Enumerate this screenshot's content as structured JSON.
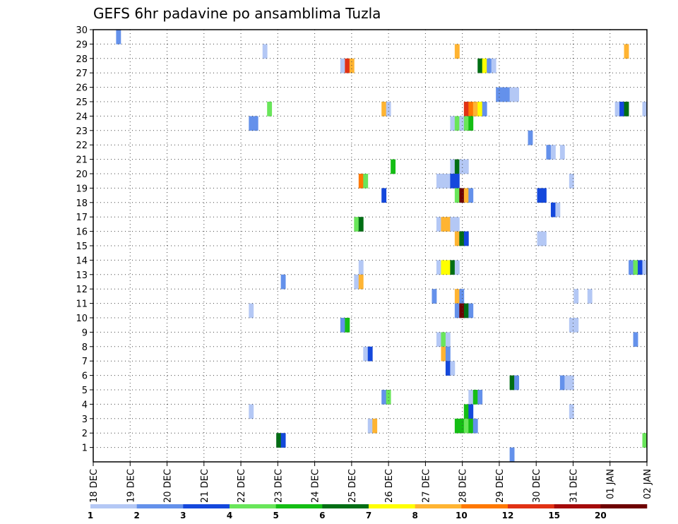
{
  "chart_data": {
    "type": "heatmap",
    "title": "GEFS 6hr padavine po ansamblima Tuzla",
    "xlabel": "",
    "ylabel": "",
    "x_ticks": [
      "18 DEC",
      "19 DEC",
      "20 DEC",
      "21 DEC",
      "22 DEC",
      "23 DEC",
      "24 DEC",
      "25 DEC",
      "26 DEC",
      "27 DEC",
      "28 DEC",
      "29 DEC",
      "30 DEC",
      "31 DEC",
      "01 JAN",
      "02 JAN"
    ],
    "y_ticks": [
      "1",
      "2",
      "3",
      "4",
      "5",
      "6",
      "7",
      "8",
      "9",
      "10",
      "11",
      "12",
      "13",
      "14",
      "15",
      "16",
      "17",
      "18",
      "19",
      "20",
      "21",
      "22",
      "23",
      "24",
      "25",
      "26",
      "27",
      "28",
      "29",
      "30"
    ],
    "ylim": [
      0,
      30
    ],
    "grid": true,
    "colorbar": {
      "labels": [
        "1",
        "2",
        "3",
        "4",
        "5",
        "6",
        "7",
        "8",
        "10",
        "12",
        "15",
        "20"
      ],
      "colors": [
        "#b4c8f5",
        "#6491eb",
        "#1448dc",
        "#69e65a",
        "#14be14",
        "#006e14",
        "#ffff00",
        "#ffb432",
        "#ff7800",
        "#e13214",
        "#a50a0a",
        "#6e0000"
      ]
    },
    "cells": [
      [
        5,
        30,
        "#6491eb"
      ],
      [
        37,
        29,
        "#b4c8f5"
      ],
      [
        79,
        29,
        "#ffb432"
      ],
      [
        116,
        29,
        "#ffb432"
      ],
      [
        54,
        28,
        "#b4c8f5"
      ],
      [
        55,
        28,
        "#e13214"
      ],
      [
        56,
        28,
        "#ffb432"
      ],
      [
        84,
        28,
        "#006e14"
      ],
      [
        85,
        28,
        "#ffff00"
      ],
      [
        86,
        28,
        "#6491eb"
      ],
      [
        87,
        28,
        "#b4c8f5"
      ],
      [
        88,
        26,
        "#6491eb"
      ],
      [
        89,
        26,
        "#6491eb"
      ],
      [
        90,
        26,
        "#6491eb"
      ],
      [
        91,
        26,
        "#b4c8f5"
      ],
      [
        92,
        26,
        "#b4c8f5"
      ],
      [
        38,
        25,
        "#69e65a"
      ],
      [
        63,
        25,
        "#ffb432"
      ],
      [
        64,
        25,
        "#b4c8f5"
      ],
      [
        81,
        25,
        "#e13214"
      ],
      [
        82,
        25,
        "#ff7800"
      ],
      [
        83,
        25,
        "#ffb432"
      ],
      [
        84,
        25,
        "#ffff00"
      ],
      [
        85,
        25,
        "#6491eb"
      ],
      [
        114,
        25,
        "#b4c8f5"
      ],
      [
        115,
        25,
        "#1448dc"
      ],
      [
        116,
        25,
        "#006e14"
      ],
      [
        120,
        25,
        "#b4c8f5"
      ],
      [
        34,
        24,
        "#6491eb"
      ],
      [
        35,
        24,
        "#6491eb"
      ],
      [
        78,
        24,
        "#b4c8f5"
      ],
      [
        79,
        24,
        "#69e65a"
      ],
      [
        80,
        24,
        "#b4c8f5"
      ],
      [
        81,
        24,
        "#69e65a"
      ],
      [
        82,
        24,
        "#14be14"
      ],
      [
        95,
        23,
        "#6491eb"
      ],
      [
        99,
        22,
        "#6491eb"
      ],
      [
        100,
        22,
        "#b4c8f5"
      ],
      [
        102,
        22,
        "#b4c8f5"
      ],
      [
        65,
        21,
        "#14be14"
      ],
      [
        78,
        21,
        "#b4c8f5"
      ],
      [
        79,
        21,
        "#006e14"
      ],
      [
        80,
        21,
        "#b4c8f5"
      ],
      [
        81,
        21,
        "#b4c8f5"
      ],
      [
        58,
        20,
        "#ff7800"
      ],
      [
        59,
        20,
        "#69e65a"
      ],
      [
        75,
        20,
        "#b4c8f5"
      ],
      [
        76,
        20,
        "#b4c8f5"
      ],
      [
        77,
        20,
        "#b4c8f5"
      ],
      [
        78,
        20,
        "#1448dc"
      ],
      [
        79,
        20,
        "#1448dc"
      ],
      [
        104,
        20,
        "#b4c8f5"
      ],
      [
        63,
        19,
        "#1448dc"
      ],
      [
        79,
        19,
        "#69e65a"
      ],
      [
        80,
        19,
        "#6e0000"
      ],
      [
        81,
        19,
        "#ffb432"
      ],
      [
        82,
        19,
        "#6491eb"
      ],
      [
        97,
        19,
        "#1448dc"
      ],
      [
        98,
        19,
        "#1448dc"
      ],
      [
        100,
        18,
        "#1448dc"
      ],
      [
        101,
        18,
        "#b4c8f5"
      ],
      [
        57,
        17,
        "#69e65a"
      ],
      [
        58,
        17,
        "#006e14"
      ],
      [
        75,
        17,
        "#b4c8f5"
      ],
      [
        76,
        17,
        "#ffb432"
      ],
      [
        77,
        17,
        "#ffb432"
      ],
      [
        78,
        17,
        "#b4c8f5"
      ],
      [
        79,
        17,
        "#b4c8f5"
      ],
      [
        79,
        16,
        "#ffb432"
      ],
      [
        80,
        16,
        "#006e14"
      ],
      [
        81,
        16,
        "#1448dc"
      ],
      [
        97,
        16,
        "#b4c8f5"
      ],
      [
        98,
        16,
        "#b4c8f5"
      ],
      [
        58,
        14,
        "#b4c8f5"
      ],
      [
        75,
        14,
        "#b4c8f5"
      ],
      [
        76,
        14,
        "#ffff00"
      ],
      [
        77,
        14,
        "#ffff00"
      ],
      [
        78,
        14,
        "#006e14"
      ],
      [
        79,
        14,
        "#b4c8f5"
      ],
      [
        117,
        14,
        "#6491eb"
      ],
      [
        118,
        14,
        "#69e65a"
      ],
      [
        119,
        14,
        "#1448dc"
      ],
      [
        120,
        14,
        "#b4c8f5"
      ],
      [
        41,
        13,
        "#6491eb"
      ],
      [
        57,
        13,
        "#b4c8f5"
      ],
      [
        58,
        13,
        "#ffb432"
      ],
      [
        74,
        12,
        "#6491eb"
      ],
      [
        79,
        12,
        "#ffb432"
      ],
      [
        80,
        12,
        "#6491eb"
      ],
      [
        105,
        12,
        "#b4c8f5"
      ],
      [
        108,
        12,
        "#b4c8f5"
      ],
      [
        34,
        11,
        "#b4c8f5"
      ],
      [
        79,
        11,
        "#6491eb"
      ],
      [
        80,
        11,
        "#6e0000"
      ],
      [
        81,
        11,
        "#006e14"
      ],
      [
        82,
        11,
        "#6491eb"
      ],
      [
        54,
        10,
        "#6491eb"
      ],
      [
        55,
        10,
        "#14be14"
      ],
      [
        104,
        10,
        "#b4c8f5"
      ],
      [
        105,
        10,
        "#b4c8f5"
      ],
      [
        75,
        9,
        "#b4c8f5"
      ],
      [
        76,
        9,
        "#69e65a"
      ],
      [
        77,
        9,
        "#b4c8f5"
      ],
      [
        118,
        9,
        "#6491eb"
      ],
      [
        59,
        8,
        "#b4c8f5"
      ],
      [
        60,
        8,
        "#1448dc"
      ],
      [
        76,
        8,
        "#ffb432"
      ],
      [
        77,
        8,
        "#6491eb"
      ],
      [
        77,
        7,
        "#1448dc"
      ],
      [
        78,
        7,
        "#b4c8f5"
      ],
      [
        91,
        6,
        "#006e14"
      ],
      [
        92,
        6,
        "#6491eb"
      ],
      [
        102,
        6,
        "#6491eb"
      ],
      [
        103,
        6,
        "#b4c8f5"
      ],
      [
        104,
        6,
        "#b4c8f5"
      ],
      [
        63,
        5,
        "#6491eb"
      ],
      [
        64,
        5,
        "#69e65a"
      ],
      [
        82,
        5,
        "#b4c8f5"
      ],
      [
        83,
        5,
        "#14be14"
      ],
      [
        84,
        5,
        "#6491eb"
      ],
      [
        34,
        4,
        "#b4c8f5"
      ],
      [
        81,
        4,
        "#14be14"
      ],
      [
        82,
        4,
        "#1448dc"
      ],
      [
        104,
        4,
        "#b4c8f5"
      ],
      [
        60,
        3,
        "#b4c8f5"
      ],
      [
        61,
        3,
        "#ffb432"
      ],
      [
        79,
        3,
        "#14be14"
      ],
      [
        80,
        3,
        "#14be14"
      ],
      [
        81,
        3,
        "#69e65a"
      ],
      [
        82,
        3,
        "#14be14"
      ],
      [
        83,
        3,
        "#6491eb"
      ],
      [
        40,
        2,
        "#006e14"
      ],
      [
        41,
        2,
        "#1448dc"
      ],
      [
        120,
        2,
        "#69e65a"
      ],
      [
        91,
        1,
        "#6491eb"
      ]
    ]
  }
}
